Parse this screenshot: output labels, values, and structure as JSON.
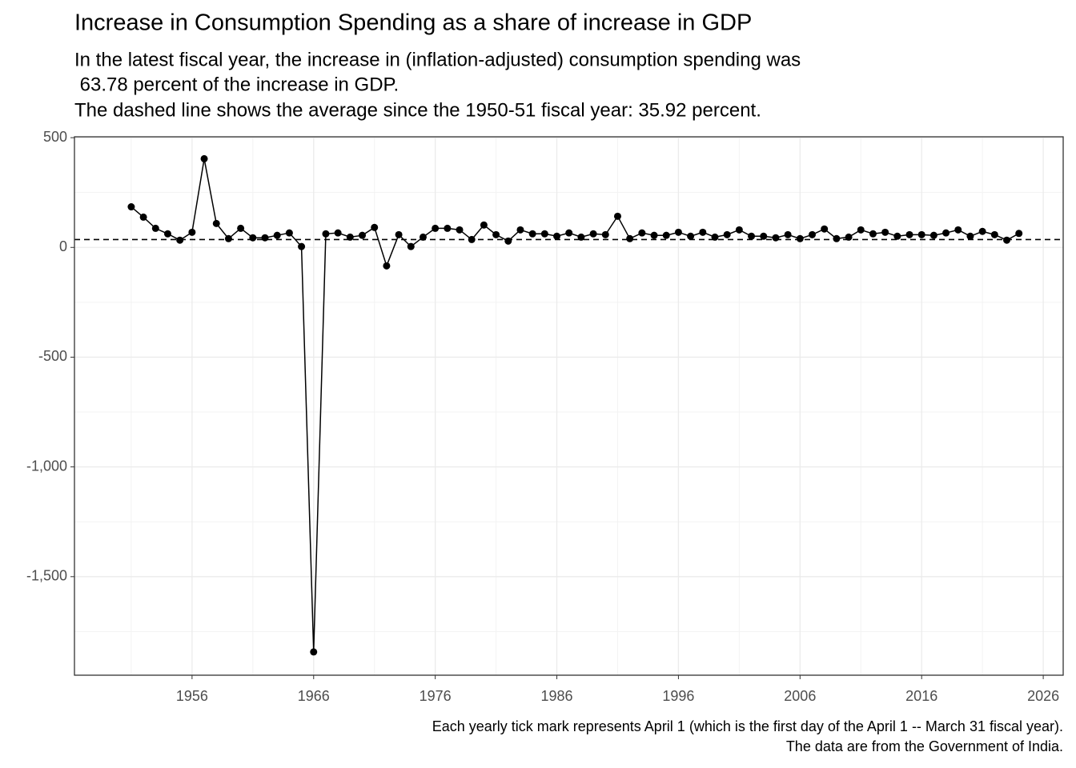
{
  "chart_data": {
    "type": "line",
    "title": "Increase in Consumption Spending as a share of increase in GDP",
    "subtitle": [
      "In the latest fiscal year, the increase in (inflation-adjusted) consumption spending was",
      " 63.78 percent of the increase in GDP.",
      "The dashed line shows the average since the 1950-51 fiscal year: 35.92 percent."
    ],
    "caption": [
      "Each yearly tick mark represents April 1 (which is the first day of the April 1 -- March 31 fiscal year).",
      "The data are from the Government of India."
    ],
    "x": [
      1951,
      1952,
      1953,
      1954,
      1955,
      1956,
      1957,
      1958,
      1959,
      1960,
      1961,
      1962,
      1963,
      1964,
      1965,
      1966,
      1967,
      1968,
      1969,
      1970,
      1971,
      1972,
      1973,
      1974,
      1975,
      1976,
      1977,
      1978,
      1979,
      1980,
      1981,
      1982,
      1983,
      1984,
      1985,
      1986,
      1987,
      1988,
      1989,
      1990,
      1991,
      1992,
      1993,
      1994,
      1995,
      1996,
      1997,
      1998,
      1999,
      2000,
      2001,
      2002,
      2003,
      2004,
      2005,
      2006,
      2007,
      2008,
      2009,
      2010,
      2011,
      2012,
      2013,
      2014,
      2015,
      2016,
      2017,
      2018,
      2019,
      2020,
      2021,
      2022,
      2023,
      2024
    ],
    "values": [
      185,
      138,
      87,
      62,
      33,
      69,
      404,
      109,
      40,
      87,
      44,
      44,
      55,
      66,
      4,
      -1843,
      62,
      66,
      47,
      55,
      91,
      -84,
      58,
      4,
      47,
      87,
      87,
      80,
      36,
      102,
      58,
      29,
      80,
      62,
      62,
      51,
      66,
      47,
      62,
      58,
      142,
      40,
      66,
      55,
      55,
      69,
      51,
      69,
      47,
      58,
      80,
      51,
      51,
      44,
      58,
      40,
      58,
      84,
      40,
      47,
      80,
      62,
      69,
      51,
      58,
      58,
      55,
      66,
      80,
      51,
      73,
      58,
      33,
      63.78
    ],
    "color": "#000000",
    "reference_line": {
      "value": 35.92,
      "style": "dashed"
    },
    "xlim": [
      1946.33,
      2027.64
    ],
    "xticks": [
      1956,
      1966,
      1976,
      1986,
      1996,
      2006,
      2016,
      2026
    ],
    "ylim": [
      -1949,
      504
    ],
    "yticks": [
      500,
      0,
      -500,
      {
        "value": -1000,
        "label": "-1,000"
      },
      {
        "value": -1500,
        "label": "-1,500"
      }
    ],
    "grid": true
  }
}
